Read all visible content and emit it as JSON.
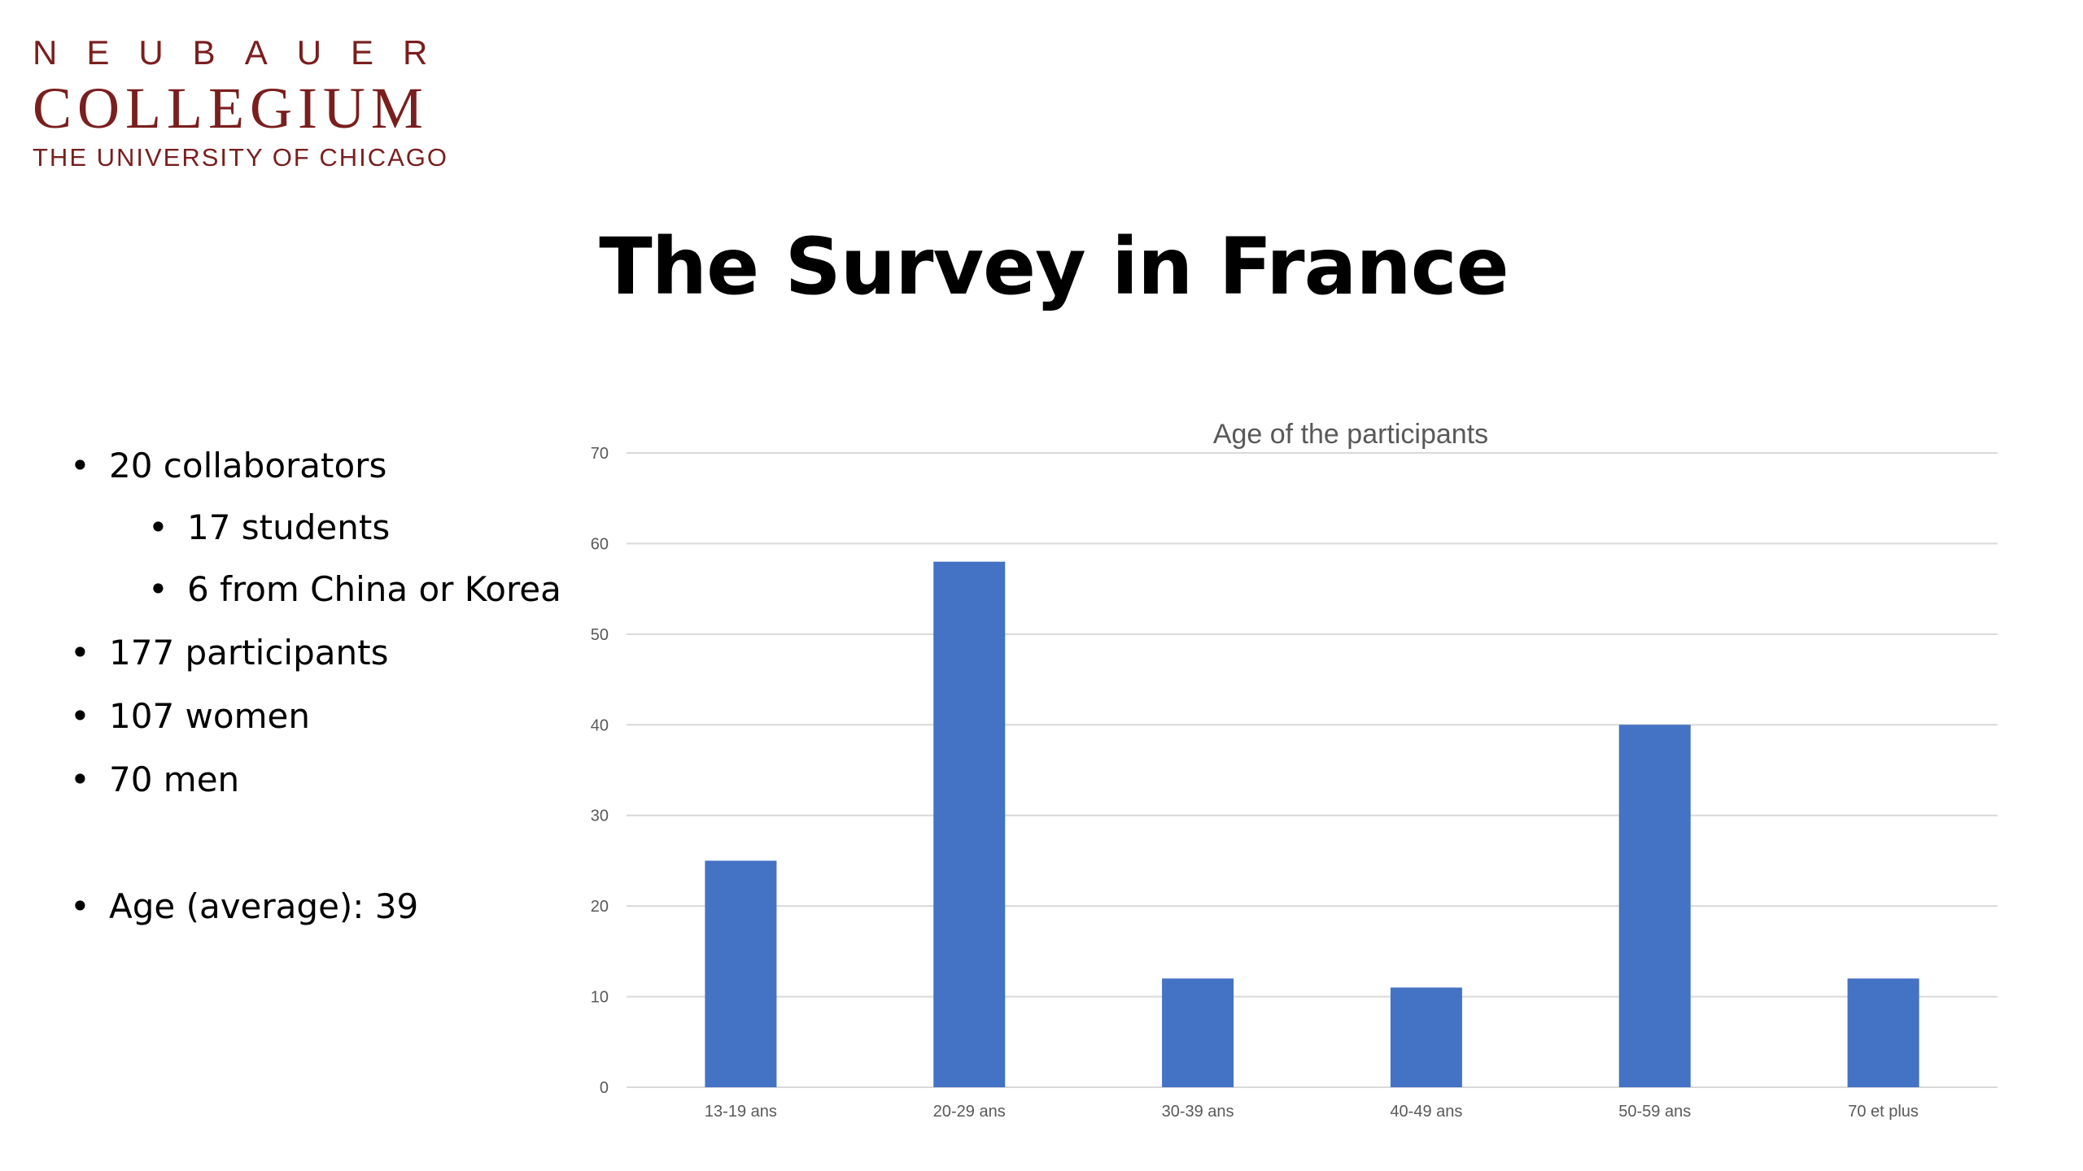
{
  "logo": {
    "line1": "NEUBAUER",
    "line2": "COLLEGIUM",
    "line3": "THE UNIVERSITY OF CHICAGO",
    "color": "#7a1e1e"
  },
  "slide": {
    "title": "The Survey in France"
  },
  "bullets": {
    "collaborators": "20 collaborators",
    "students": "17 students",
    "china_korea": "6 from China or Korea",
    "participants": "177 participants",
    "women": "107 women",
    "men": "70 men",
    "age": "Age (average): 39"
  },
  "chart_data": {
    "type": "bar",
    "title": "Age of the participants",
    "xlabel": "",
    "ylabel": "",
    "categories": [
      "13-19 ans",
      "20-29 ans",
      "30-39 ans",
      "40-49 ans",
      "50-59 ans",
      "70 et plus"
    ],
    "values": [
      25,
      58,
      12,
      11,
      40,
      12
    ],
    "ylim": [
      0,
      70
    ],
    "yticks": [
      0,
      10,
      20,
      30,
      40,
      50,
      60,
      70
    ],
    "grid": true,
    "legend": "none",
    "bar_color": "#4472c4",
    "grid_color": "#d9d9d9",
    "tick_color": "#595959"
  }
}
